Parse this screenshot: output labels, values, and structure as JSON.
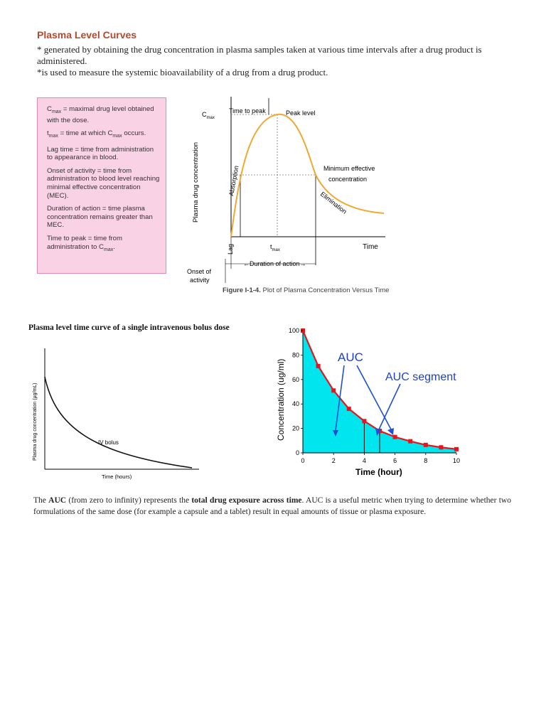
{
  "heading": "Plasma Level Curves",
  "intro": {
    "line1": "* generated by obtaining the drug concentration in plasma samples taken at various time intervals after a drug product is administered.",
    "line2": "*is  used to measure the systemic bioavailability of a drug from a drug product."
  },
  "definitions": [
    {
      "term": "C",
      "sub": "max",
      "text": " = maximal drug level obtained with the dose."
    },
    {
      "term": "t",
      "sub": "max",
      "text": " = time at which C",
      "sub2": "max",
      "text2": " occurs."
    },
    {
      "term": "",
      "sub": "",
      "text": "Lag time = time from administration to appearance in blood."
    },
    {
      "term": "",
      "sub": "",
      "text": "Onset of activity = time from administration to blood level reaching minimal effective concentration (MEC)."
    },
    {
      "term": "",
      "sub": "",
      "text": "Duration of action = time plasma concentration remains greater than MEC."
    },
    {
      "term": "",
      "sub": "",
      "text": "Time to peak = time from administration to C",
      "sub2": "max",
      "text2": "."
    }
  ],
  "figure1": {
    "ylabel": "Plasma drug concentration",
    "cmax": "C",
    "cmax_sub": "max",
    "time_to_peak": "Time to peak",
    "peak_level": "Peak level",
    "mec_line1": "Minimum effective",
    "mec_line2": "concentration",
    "absorption": "Absorption",
    "elimination": "Elimination",
    "tmax": "t",
    "tmax_sub": "max",
    "time": "Time",
    "lag": "Lag",
    "duration": "Duration of action",
    "onset1": "Onset of",
    "onset2": "activity",
    "caption_bold": "Figure I-1-4.",
    "caption_rest": " Plot of Plasma Concentration Versus Time"
  },
  "figure2": {
    "title": "Plasma level time curve of a single intravenous bolus dose",
    "ylabel": "Plasma drug concentration (µg/mL)",
    "xlabel": "Time (hours)",
    "label": "IV bolus"
  },
  "chart_data": {
    "type": "line",
    "x": [
      0,
      1,
      2,
      3,
      4,
      5,
      6,
      7,
      8,
      9,
      10
    ],
    "values": [
      100,
      71,
      51,
      36,
      26,
      18,
      13,
      9.5,
      6.5,
      4.5,
      3
    ],
    "xlabel": "Time (hour)",
    "ylabel": "Concentration (ug/ml)",
    "xlim": [
      0,
      10
    ],
    "ylim": [
      0,
      100
    ],
    "xticks": [
      "0",
      "2",
      "4",
      "6",
      "8",
      "10"
    ],
    "yticks": [
      "0",
      "20",
      "40",
      "60",
      "80",
      "100"
    ],
    "annotations": [
      "AUC",
      "AUC segment"
    ],
    "line_color": "#e8141c",
    "fill_color": "#00e5ee"
  },
  "bottom": {
    "p1": "The ",
    "auc": "AUC",
    "p2": " (from zero to infinity) represents the ",
    "bold2": "total drug exposure across time",
    "p3": ". AUC is a useful metric when trying to determine whether two formulations of the same dose (for example a capsule and a tablet) result in equal amounts of tissue or plasma exposure."
  }
}
